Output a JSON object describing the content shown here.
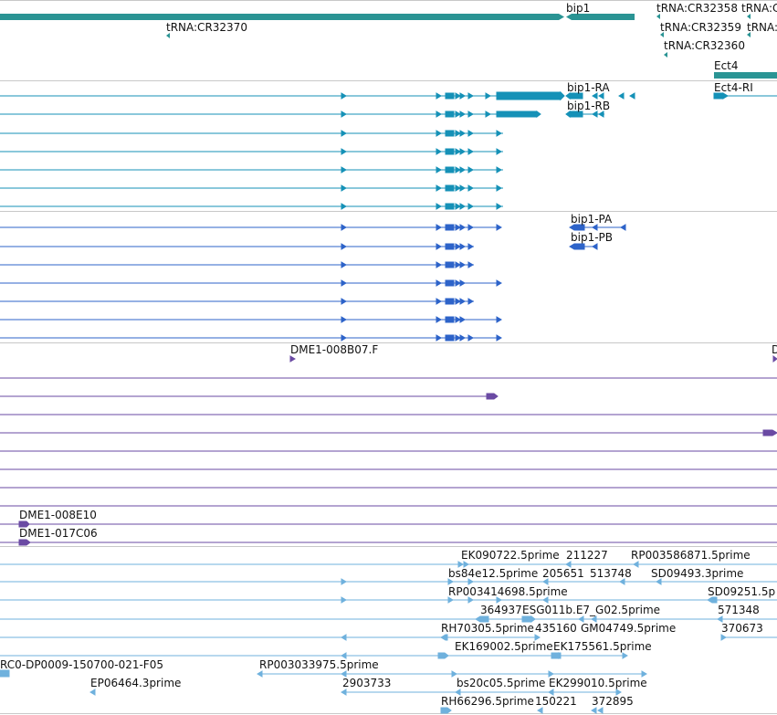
{
  "colors": {
    "gene": "#2a9494",
    "transcript": "#1591b7",
    "protein": "#2d63c9",
    "clone": "#6a4aa3",
    "est": "#6fb1dd",
    "separator": "#c8c8c8"
  },
  "tracks": {
    "genes": [
      {
        "name": "gene-bip1",
        "label": "bip1"
      },
      {
        "name": "gene-trna-cr32370",
        "label": "tRNA:CR32370"
      },
      {
        "name": "gene-trna-cr32358",
        "label": "tRNA:CR32358"
      },
      {
        "name": "gene-trna-cut",
        "label": "tRNA:C"
      },
      {
        "name": "gene-trna-cr32359",
        "label": "tRNA:CR32359"
      },
      {
        "name": "gene-trna-cut2",
        "label": "tRNA:"
      },
      {
        "name": "gene-trna-cr32360",
        "label": "tRNA:CR32360"
      },
      {
        "name": "gene-ect4",
        "label": "Ect4"
      }
    ],
    "transcripts": [
      {
        "name": "transcript-bip1-ra",
        "label": "bip1-RA"
      },
      {
        "name": "transcript-bip1-rb",
        "label": "bip1-RB"
      },
      {
        "name": "transcript-ect4-ri",
        "label": "Ect4-RI"
      }
    ],
    "proteins": [
      {
        "name": "protein-bip1-pa",
        "label": "bip1-PA"
      },
      {
        "name": "protein-bip1-pb",
        "label": "bip1-PB"
      }
    ],
    "clones": [
      {
        "name": "clone-dme1-008b07",
        "label": "DME1-008B07.F"
      },
      {
        "name": "clone-cut",
        "label": "D"
      },
      {
        "name": "clone-dme1-008e10",
        "label": "DME1-008E10"
      },
      {
        "name": "clone-dme1-017c06",
        "label": "DME1-017C06"
      }
    ],
    "ests": [
      {
        "name": "est-ek090722",
        "label": "EK090722.5prime"
      },
      {
        "name": "est-211227",
        "label": "211227"
      },
      {
        "name": "est-rp003586871",
        "label": "RP003586871.5prime"
      },
      {
        "name": "est-bs84e12",
        "label": "bs84e12.5prime"
      },
      {
        "name": "est-205651",
        "label": "205651"
      },
      {
        "name": "est-513748",
        "label": "513748"
      },
      {
        "name": "est-sd09493",
        "label": "SD09493.3prime"
      },
      {
        "name": "est-rp003414698",
        "label": "RP003414698.5prime"
      },
      {
        "name": "est-sd09251",
        "label": "SD09251.5p"
      },
      {
        "name": "est-364937",
        "label": "364937"
      },
      {
        "name": "est-esg011b",
        "label": "ESG011b.E7_G02.5prime"
      },
      {
        "name": "est-571348",
        "label": "571348"
      },
      {
        "name": "est-rh70305",
        "label": "RH70305.5prime"
      },
      {
        "name": "est-435160",
        "label": "435160"
      },
      {
        "name": "est-gm04749",
        "label": "GM04749.5prime"
      },
      {
        "name": "est-370673",
        "label": "370673"
      },
      {
        "name": "est-ek169002",
        "label": "EK169002.5prime"
      },
      {
        "name": "est-ek175561",
        "label": "EK175561.5prime"
      },
      {
        "name": "est-rc0-dp0009",
        "label": "RC0-DP0009-150700-021-F05"
      },
      {
        "name": "est-rp003033975",
        "label": "RP003033975.5prime"
      },
      {
        "name": "est-ep06464",
        "label": "EP06464.3prime"
      },
      {
        "name": "est-2903733",
        "label": "2903733"
      },
      {
        "name": "est-bs20c05",
        "label": "bs20c05.5prime"
      },
      {
        "name": "est-ek299010",
        "label": "EK299010.5prime"
      },
      {
        "name": "est-rh66296",
        "label": "RH66296.5prime"
      },
      {
        "name": "est-150221",
        "label": "150221"
      },
      {
        "name": "est-372895",
        "label": "372895"
      }
    ]
  }
}
